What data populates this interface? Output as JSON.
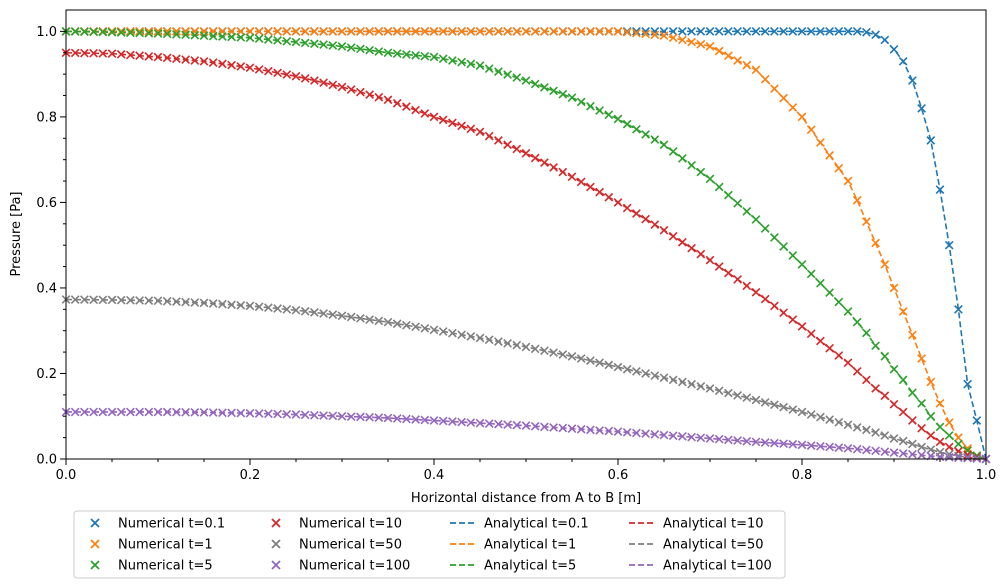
{
  "chart_data": {
    "type": "line",
    "title": "",
    "xlabel": "Horizontal distance from A to B [m]",
    "ylabel": "Pressure [Pa]",
    "xlim": [
      0.0,
      1.0
    ],
    "ylim": [
      0.0,
      1.05
    ],
    "x_ticks": [
      0.0,
      0.2,
      0.4,
      0.6,
      0.8,
      1.0
    ],
    "x_tick_labels": [
      "0.0",
      "0.2",
      "0.4",
      "0.6",
      "0.8",
      "1.0"
    ],
    "y_ticks": [
      0.0,
      0.2,
      0.4,
      0.6,
      0.8,
      1.0
    ],
    "y_tick_labels": [
      "0.0",
      "0.2",
      "0.4",
      "0.6",
      "0.8",
      "1.0"
    ],
    "grid": false,
    "legend_position": "below-left",
    "x": [
      0.0,
      0.05,
      0.1,
      0.15,
      0.2,
      0.25,
      0.3,
      0.35,
      0.4,
      0.45,
      0.5,
      0.55,
      0.6,
      0.65,
      0.7,
      0.75,
      0.8,
      0.85,
      0.86,
      0.87,
      0.88,
      0.89,
      0.9,
      0.91,
      0.92,
      0.93,
      0.94,
      0.95,
      0.96,
      0.97,
      0.98,
      0.99,
      1.0
    ],
    "series": [
      {
        "name": "t=0.1",
        "color": "#1f77b4",
        "values": [
          1.0,
          1.0,
          1.0,
          1.0,
          1.0,
          1.0,
          1.0,
          1.0,
          1.0,
          1.0,
          1.0,
          1.0,
          1.0,
          1.0,
          1.0,
          1.0,
          1.0,
          1.0,
          1.0,
          0.998,
          0.992,
          0.98,
          0.958,
          0.93,
          0.885,
          0.82,
          0.745,
          0.63,
          0.5,
          0.35,
          0.175,
          0.09,
          0.0
        ]
      },
      {
        "name": "t=1",
        "color": "#ff7f0e",
        "values": [
          1.0,
          1.0,
          1.0,
          1.0,
          1.0,
          1.0,
          1.0,
          1.0,
          1.0,
          1.0,
          1.0,
          1.0,
          1.0,
          0.99,
          0.965,
          0.91,
          0.8,
          0.65,
          0.605,
          0.555,
          0.505,
          0.455,
          0.4,
          0.345,
          0.29,
          0.235,
          0.18,
          0.13,
          0.085,
          0.05,
          0.025,
          0.008,
          0.0
        ]
      },
      {
        "name": "t=5",
        "color": "#2ca02c",
        "values": [
          1.0,
          0.998,
          0.995,
          0.99,
          0.985,
          0.975,
          0.965,
          0.95,
          0.94,
          0.92,
          0.885,
          0.845,
          0.795,
          0.735,
          0.655,
          0.56,
          0.455,
          0.345,
          0.32,
          0.295,
          0.265,
          0.24,
          0.21,
          0.185,
          0.155,
          0.13,
          0.1,
          0.075,
          0.055,
          0.035,
          0.02,
          0.008,
          0.0
        ]
      },
      {
        "name": "t=10",
        "color": "#d62728",
        "values": [
          0.95,
          0.948,
          0.94,
          0.93,
          0.915,
          0.895,
          0.87,
          0.84,
          0.8,
          0.765,
          0.715,
          0.66,
          0.6,
          0.535,
          0.465,
          0.39,
          0.31,
          0.225,
          0.205,
          0.185,
          0.165,
          0.148,
          0.128,
          0.11,
          0.09,
          0.072,
          0.055,
          0.04,
          0.028,
          0.018,
          0.01,
          0.004,
          0.0
        ]
      },
      {
        "name": "t=50",
        "color": "#7f7f7f",
        "values": [
          0.373,
          0.372,
          0.37,
          0.365,
          0.358,
          0.348,
          0.335,
          0.32,
          0.302,
          0.283,
          0.262,
          0.24,
          0.215,
          0.19,
          0.165,
          0.138,
          0.11,
          0.08,
          0.074,
          0.068,
          0.062,
          0.055,
          0.048,
          0.042,
          0.035,
          0.028,
          0.022,
          0.016,
          0.011,
          0.007,
          0.004,
          0.002,
          0.0
        ]
      },
      {
        "name": "t=100",
        "color": "#9467bd",
        "values": [
          0.11,
          0.11,
          0.11,
          0.109,
          0.107,
          0.104,
          0.1,
          0.096,
          0.09,
          0.084,
          0.078,
          0.071,
          0.064,
          0.056,
          0.048,
          0.04,
          0.033,
          0.025,
          0.023,
          0.021,
          0.019,
          0.017,
          0.015,
          0.013,
          0.011,
          0.009,
          0.007,
          0.005,
          0.004,
          0.003,
          0.002,
          0.001,
          0.0
        ]
      }
    ],
    "legend": {
      "columns": [
        [
          "Numerical t=0.1",
          "Numerical t=1",
          "Numerical t=5"
        ],
        [
          "Numerical t=10",
          "Numerical t=50",
          "Numerical t=100"
        ],
        [
          "Analytical t=0.1",
          "Analytical t=1",
          "Analytical t=5"
        ],
        [
          "Analytical t=10",
          "Analytical t=50",
          "Analytical t=100"
        ]
      ]
    }
  }
}
